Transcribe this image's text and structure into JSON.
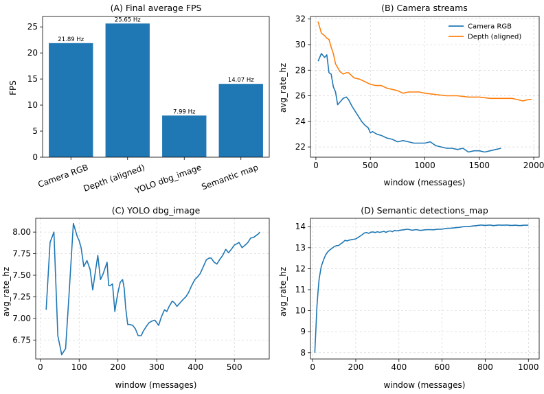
{
  "chart_data": [
    {
      "id": "A",
      "type": "bar",
      "title": "(A) Final average FPS",
      "xlabel": "",
      "ylabel": "FPS",
      "categories": [
        "Camera RGB",
        "Depth (aligned)",
        "YOLO dbg_image",
        "Semantic map"
      ],
      "values": [
        21.89,
        25.65,
        7.99,
        14.07
      ],
      "data_labels": [
        "21.89 Hz",
        "25.65 Hz",
        "7.99 Hz",
        "14.07 Hz"
      ],
      "ylim": [
        0,
        27
      ],
      "yticks": [
        0,
        5,
        10,
        15,
        20,
        25
      ],
      "grid": false,
      "color": "#1f77b4"
    },
    {
      "id": "B",
      "type": "line",
      "title": "(B) Camera streams",
      "xlabel": "window (messages)",
      "ylabel": "avg_rate_hz",
      "xlim": [
        -50,
        2050
      ],
      "ylim": [
        21.2,
        32.2
      ],
      "xticks": [
        0,
        500,
        1000,
        1500,
        2000
      ],
      "yticks": [
        22,
        24,
        26,
        28,
        30,
        32
      ],
      "grid": true,
      "legend": "top-right",
      "series": [
        {
          "name": "Camera RGB",
          "color": "#1f77b4",
          "x": [
            20,
            50,
            80,
            100,
            120,
            140,
            160,
            180,
            200,
            220,
            250,
            280,
            300,
            330,
            360,
            390,
            420,
            450,
            480,
            500,
            520,
            560,
            600,
            650,
            700,
            750,
            800,
            850,
            900,
            950,
            1000,
            1050,
            1100,
            1150,
            1200,
            1250,
            1300,
            1350,
            1400,
            1450,
            1500,
            1550,
            1600,
            1650,
            1700
          ],
          "y": [
            28.7,
            29.3,
            29.0,
            29.2,
            27.8,
            27.7,
            26.7,
            26.3,
            25.3,
            25.5,
            25.8,
            25.9,
            25.7,
            25.2,
            24.8,
            24.4,
            24.0,
            23.7,
            23.5,
            23.1,
            23.2,
            23.0,
            22.9,
            22.7,
            22.6,
            22.4,
            22.5,
            22.4,
            22.3,
            22.3,
            22.3,
            22.4,
            22.1,
            22.0,
            21.9,
            21.9,
            21.8,
            21.9,
            21.6,
            21.7,
            21.7,
            21.6,
            21.7,
            21.8,
            21.9
          ]
        },
        {
          "name": "Depth (aligned)",
          "color": "#ff7f0e",
          "x": [
            20,
            50,
            80,
            100,
            120,
            140,
            160,
            180,
            200,
            220,
            250,
            280,
            300,
            350,
            400,
            450,
            500,
            550,
            600,
            650,
            700,
            750,
            800,
            850,
            900,
            950,
            1000,
            1100,
            1200,
            1300,
            1400,
            1500,
            1600,
            1700,
            1800,
            1850,
            1900,
            1950,
            1980
          ],
          "y": [
            31.8,
            30.9,
            30.7,
            30.5,
            30.4,
            29.8,
            29.3,
            28.5,
            28.2,
            27.9,
            27.7,
            27.8,
            27.8,
            27.4,
            27.3,
            27.1,
            26.9,
            26.8,
            26.8,
            26.6,
            26.5,
            26.4,
            26.2,
            26.3,
            26.3,
            26.3,
            26.2,
            26.1,
            26.0,
            26.0,
            25.9,
            25.9,
            25.8,
            25.8,
            25.8,
            25.7,
            25.6,
            25.7,
            25.7
          ]
        }
      ]
    },
    {
      "id": "C",
      "type": "line",
      "title": "(C) YOLO dbg_image",
      "xlabel": "window (messages)",
      "ylabel": "avg_rate_hz",
      "xlim": [
        -12,
        590
      ],
      "ylim": [
        6.53,
        8.16
      ],
      "xticks": [
        0,
        100,
        200,
        300,
        400,
        500
      ],
      "yticks": [
        6.75,
        7.0,
        7.25,
        7.5,
        7.75,
        8.0
      ],
      "grid": true,
      "series": [
        {
          "name": "",
          "color": "#1f77b4",
          "x": [
            15,
            25,
            35,
            45,
            55,
            65,
            75,
            85,
            95,
            100,
            105,
            112,
            120,
            128,
            135,
            142,
            148,
            155,
            162,
            168,
            172,
            176,
            180,
            186,
            192,
            196,
            200,
            206,
            212,
            216,
            220,
            225,
            230,
            238,
            245,
            252,
            260,
            265,
            272,
            280,
            288,
            295,
            305,
            312,
            320,
            326,
            332,
            340,
            346,
            352,
            360,
            368,
            375,
            382,
            390,
            398,
            405,
            412,
            420,
            428,
            435,
            440,
            448,
            455,
            462,
            470,
            478,
            485,
            492,
            500,
            505,
            512,
            520,
            528,
            535,
            542,
            550,
            556,
            562,
            566
          ],
          "y": [
            7.1,
            7.88,
            8.0,
            6.8,
            6.58,
            6.65,
            7.35,
            8.1,
            7.95,
            7.9,
            7.82,
            7.6,
            7.67,
            7.57,
            7.33,
            7.55,
            7.73,
            7.45,
            7.52,
            7.6,
            7.65,
            7.38,
            7.38,
            7.4,
            7.08,
            7.2,
            7.3,
            7.42,
            7.45,
            7.35,
            7.12,
            6.93,
            6.93,
            6.92,
            6.88,
            6.8,
            6.8,
            6.85,
            6.9,
            6.95,
            6.97,
            6.98,
            6.92,
            7.02,
            7.1,
            7.08,
            7.14,
            7.2,
            7.18,
            7.14,
            7.18,
            7.22,
            7.25,
            7.3,
            7.38,
            7.45,
            7.48,
            7.52,
            7.6,
            7.68,
            7.7,
            7.7,
            7.65,
            7.63,
            7.68,
            7.73,
            7.8,
            7.76,
            7.8,
            7.85,
            7.86,
            7.88,
            7.82,
            7.85,
            7.88,
            7.93,
            7.94,
            7.96,
            7.98,
            8.0
          ]
        }
      ]
    },
    {
      "id": "D",
      "type": "line",
      "title": "(D) Semantic detections_map",
      "xlabel": "window (messages)",
      "ylabel": "avg_rate_hz",
      "xlim": [
        -10,
        1050
      ],
      "ylim": [
        7.7,
        14.4
      ],
      "xticks": [
        0,
        200,
        400,
        600,
        800,
        1000
      ],
      "yticks": [
        8,
        9,
        10,
        11,
        12,
        13,
        14
      ],
      "grid": true,
      "series": [
        {
          "name": "",
          "color": "#1f77b4",
          "x": [
            10,
            15,
            20,
            25,
            30,
            35,
            40,
            50,
            60,
            70,
            80,
            90,
            100,
            110,
            120,
            130,
            140,
            150,
            160,
            170,
            180,
            190,
            200,
            210,
            220,
            230,
            240,
            250,
            260,
            270,
            280,
            290,
            300,
            310,
            320,
            330,
            340,
            350,
            360,
            370,
            380,
            390,
            400,
            420,
            440,
            460,
            480,
            500,
            520,
            540,
            560,
            580,
            600,
            620,
            640,
            660,
            680,
            700,
            720,
            740,
            760,
            780,
            800,
            820,
            840,
            860,
            880,
            900,
            920,
            940,
            960,
            980,
            1000
          ],
          "y": [
            8.0,
            9.1,
            10.2,
            10.9,
            11.5,
            11.8,
            12.1,
            12.4,
            12.65,
            12.8,
            12.9,
            12.97,
            13.05,
            13.1,
            13.1,
            13.18,
            13.25,
            13.35,
            13.32,
            13.36,
            13.38,
            13.4,
            13.42,
            13.48,
            13.55,
            13.62,
            13.7,
            13.72,
            13.68,
            13.74,
            13.75,
            13.72,
            13.76,
            13.73,
            13.75,
            13.78,
            13.73,
            13.78,
            13.8,
            13.76,
            13.82,
            13.8,
            13.82,
            13.85,
            13.88,
            13.83,
            13.86,
            13.82,
            13.85,
            13.86,
            13.85,
            13.88,
            13.88,
            13.92,
            13.93,
            13.95,
            13.97,
            14.0,
            14.0,
            14.03,
            14.05,
            14.08,
            14.06,
            14.08,
            14.05,
            14.08,
            14.07,
            14.08,
            14.06,
            14.07,
            14.05,
            14.07,
            14.07
          ]
        }
      ]
    }
  ]
}
